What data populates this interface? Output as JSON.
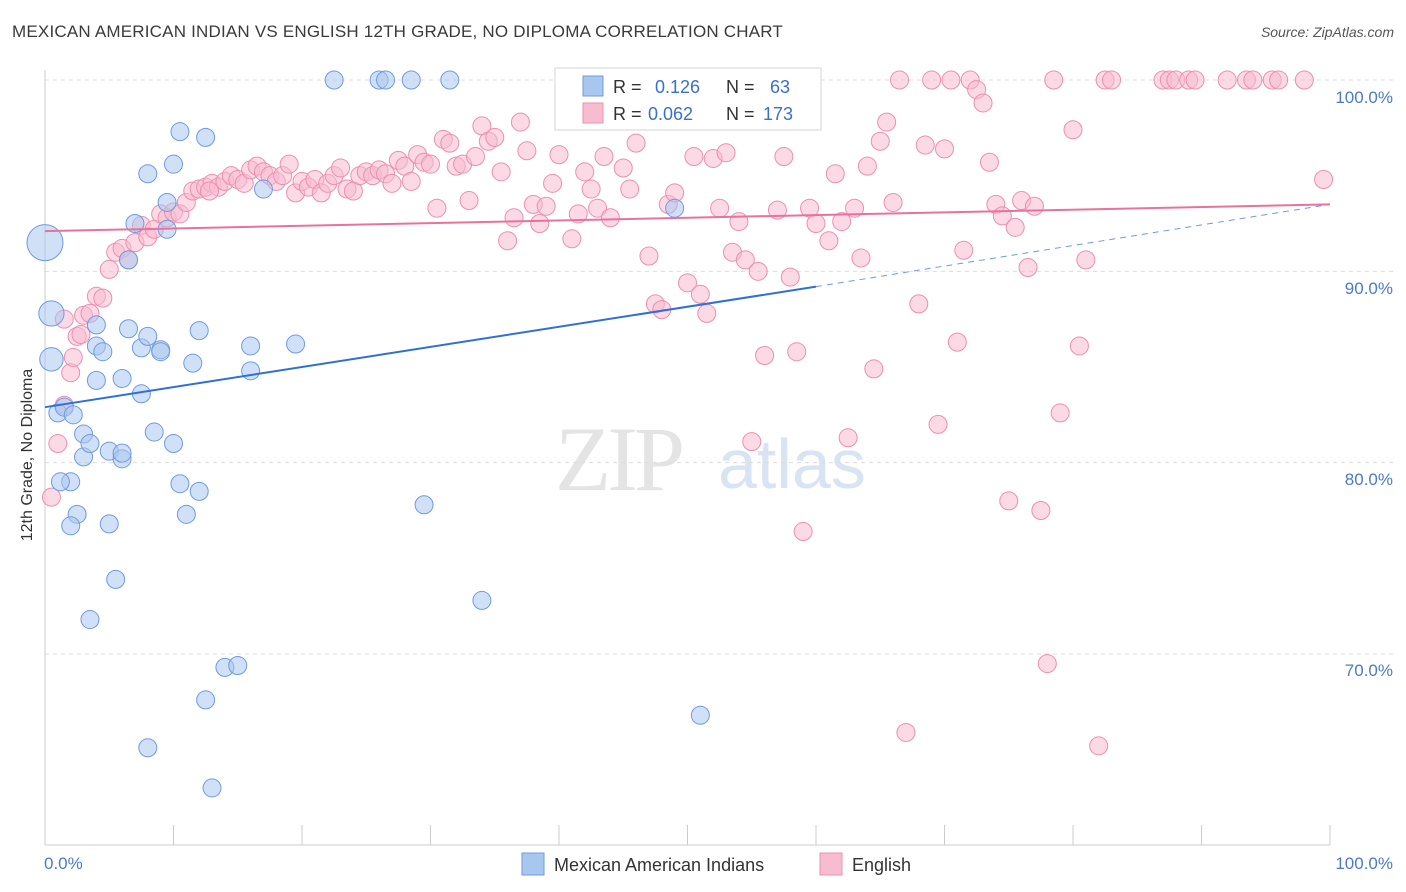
{
  "title": "MEXICAN AMERICAN INDIAN VS ENGLISH 12TH GRADE, NO DIPLOMA CORRELATION CHART",
  "source": "Source: ZipAtlas.com",
  "watermark": {
    "zip": "ZIP",
    "atlas": "atlas"
  },
  "colors": {
    "blue_fill": "#a9c6ef",
    "blue_stroke": "#6f9be0",
    "blue_line": "#2f6fd6",
    "pink_fill": "#f7bcd0",
    "pink_stroke": "#ec8fae",
    "pink_line": "#e8729c",
    "axis_text": "#4a7bc8",
    "grid": "#dcdcdc"
  },
  "stats_box": {
    "rows": [
      {
        "r_label": "R =",
        "r_value": "0.126",
        "n_label": "N =",
        "n_value": "63",
        "color": "blue"
      },
      {
        "r_label": "R =",
        "r_value": "0.062",
        "n_label": "N =",
        "n_value": "173",
        "color": "pink"
      }
    ]
  },
  "chart_data": {
    "type": "scatter",
    "xlabel": "",
    "ylabel": "12th Grade, No Diploma",
    "x_tick_labels": [
      "0.0%",
      "100.0%"
    ],
    "y_tick_labels": [
      "70.0%",
      "80.0%",
      "90.0%",
      "100.0%"
    ],
    "xlim": [
      0,
      100
    ],
    "ylim": [
      62,
      102
    ],
    "grid": true,
    "legend_position": "bottom-center",
    "series": [
      {
        "name": "Mexican American Indians",
        "color": "blue",
        "trend": {
          "x0": 0,
          "y0": 82.9,
          "x1": 60,
          "y1": 89.2,
          "dashed_to_x": 100,
          "dashed_to_y": 93.5
        },
        "points": [
          [
            0,
            91.5,
            2
          ],
          [
            0.5,
            87.8,
            1.4
          ],
          [
            0.5,
            85.4,
            1.3
          ],
          [
            1,
            82.6,
            1
          ],
          [
            1.5,
            82.9,
            1
          ],
          [
            2,
            79.0,
            1
          ],
          [
            2.5,
            77.3,
            1
          ],
          [
            2,
            76.7,
            1
          ],
          [
            3,
            80.3,
            1
          ],
          [
            3,
            81.5,
            1
          ],
          [
            3.5,
            81.0,
            1
          ],
          [
            4,
            86.1,
            1
          ],
          [
            4,
            84.3,
            1
          ],
          [
            4,
            87.2,
            1
          ],
          [
            4.5,
            85.8,
            1
          ],
          [
            3.5,
            71.8,
            1
          ],
          [
            5,
            76.8,
            1
          ],
          [
            5,
            80.6,
            1
          ],
          [
            5.5,
            73.9,
            1
          ],
          [
            6,
            80.2,
            1
          ],
          [
            6,
            80.5,
            1
          ],
          [
            6,
            84.4,
            1
          ],
          [
            6.5,
            87.0,
            1
          ],
          [
            6.5,
            90.6,
            1
          ],
          [
            7,
            92.5,
            1
          ],
          [
            7.5,
            86.0,
            1
          ],
          [
            7.5,
            83.6,
            1
          ],
          [
            8,
            65.1,
            1
          ],
          [
            8,
            95.1,
            1
          ],
          [
            8,
            86.6,
            1
          ],
          [
            8.5,
            81.6,
            1
          ],
          [
            9,
            85.9,
            1
          ],
          [
            9,
            85.8,
            1
          ],
          [
            9.5,
            93.6,
            1
          ],
          [
            9.5,
            92.2,
            1
          ],
          [
            10,
            95.6,
            1
          ],
          [
            10,
            81.0,
            1
          ],
          [
            10.5,
            78.9,
            1
          ],
          [
            10.5,
            97.3,
            1
          ],
          [
            11,
            77.3,
            1
          ],
          [
            11.5,
            85.2,
            1
          ],
          [
            12,
            86.9,
            1
          ],
          [
            12,
            78.5,
            1
          ],
          [
            12.5,
            67.6,
            1
          ],
          [
            12.5,
            97.0,
            1
          ],
          [
            13,
            63.0,
            1
          ],
          [
            14,
            69.3,
            1
          ],
          [
            15,
            69.4,
            1
          ],
          [
            16,
            84.8,
            1
          ],
          [
            16,
            86.1,
            1
          ],
          [
            17,
            94.3,
            1
          ],
          [
            19.5,
            86.2,
            1
          ],
          [
            22.5,
            100,
            1
          ],
          [
            26,
            100,
            1
          ],
          [
            26.5,
            100,
            1
          ],
          [
            28.5,
            100,
            1
          ],
          [
            29.5,
            77.8,
            1
          ],
          [
            31.5,
            100,
            1
          ],
          [
            34,
            72.8,
            1
          ],
          [
            49,
            93.3,
            1
          ],
          [
            51,
            66.8,
            1
          ],
          [
            1.2,
            79.0,
            1
          ],
          [
            2.2,
            82.5,
            1
          ]
        ]
      },
      {
        "name": "English",
        "color": "pink",
        "trend": {
          "x0": 0,
          "y0": 92.1,
          "x1": 100,
          "y1": 93.5
        },
        "points": [
          [
            0.5,
            78.2,
            1
          ],
          [
            1,
            81.0,
            1
          ],
          [
            1.5,
            83.0,
            1
          ],
          [
            2,
            84.7,
            1
          ],
          [
            2.2,
            85.5,
            1
          ],
          [
            2.5,
            86.6,
            1
          ],
          [
            3,
            87.7,
            1
          ],
          [
            3.5,
            87.8,
            1
          ],
          [
            4,
            88.7,
            1
          ],
          [
            4.5,
            88.6,
            1
          ],
          [
            5,
            90.1,
            1
          ],
          [
            5.5,
            91.0,
            1
          ],
          [
            6,
            91.2,
            1
          ],
          [
            6.5,
            90.6,
            1
          ],
          [
            7,
            91.5,
            1
          ],
          [
            7.5,
            92.4,
            1
          ],
          [
            8,
            91.8,
            1
          ],
          [
            8.5,
            92.2,
            1
          ],
          [
            9,
            93.0,
            1
          ],
          [
            9.5,
            92.8,
            1
          ],
          [
            10,
            93.1,
            1
          ],
          [
            10.5,
            93.0,
            1
          ],
          [
            11,
            93.6,
            1
          ],
          [
            11.5,
            94.2,
            1
          ],
          [
            12,
            94.3,
            1
          ],
          [
            12.5,
            94.4,
            1
          ],
          [
            13,
            94.6,
            1
          ],
          [
            13.5,
            94.4,
            1
          ],
          [
            14,
            94.7,
            1
          ],
          [
            14.5,
            95.0,
            1
          ],
          [
            15,
            94.8,
            1
          ],
          [
            15.5,
            94.6,
            1
          ],
          [
            16,
            95.3,
            1
          ],
          [
            16.5,
            95.5,
            1
          ],
          [
            17,
            95.2,
            1
          ],
          [
            17.5,
            95.0,
            1
          ],
          [
            18,
            94.7,
            1
          ],
          [
            18.5,
            95.0,
            1
          ],
          [
            19,
            95.6,
            1
          ],
          [
            19.5,
            94.1,
            1
          ],
          [
            20,
            94.7,
            1
          ],
          [
            20.5,
            94.4,
            1
          ],
          [
            21,
            94.8,
            1
          ],
          [
            21.5,
            94.1,
            1
          ],
          [
            22,
            94.6,
            1
          ],
          [
            22.5,
            95.0,
            1
          ],
          [
            23,
            95.4,
            1
          ],
          [
            23.5,
            94.3,
            1
          ],
          [
            24,
            94.2,
            1
          ],
          [
            24.5,
            95.0,
            1
          ],
          [
            25,
            95.2,
            1
          ],
          [
            25.5,
            95.0,
            1
          ],
          [
            26,
            95.3,
            1
          ],
          [
            26.5,
            95.1,
            1
          ],
          [
            27,
            94.6,
            1
          ],
          [
            27.5,
            95.8,
            1
          ],
          [
            28,
            95.5,
            1
          ],
          [
            28.5,
            94.7,
            1
          ],
          [
            29,
            96.1,
            1
          ],
          [
            29.5,
            95.7,
            1
          ],
          [
            30,
            95.6,
            1
          ],
          [
            30.5,
            93.3,
            1
          ],
          [
            31,
            96.9,
            1
          ],
          [
            31.5,
            96.7,
            1
          ],
          [
            32,
            95.5,
            1
          ],
          [
            32.5,
            95.6,
            1
          ],
          [
            33,
            93.7,
            1
          ],
          [
            33.5,
            96.0,
            1
          ],
          [
            34,
            97.6,
            1
          ],
          [
            34.5,
            96.8,
            1
          ],
          [
            35,
            97.0,
            1
          ],
          [
            35.5,
            95.2,
            1
          ],
          [
            36,
            91.6,
            1
          ],
          [
            36.5,
            92.8,
            1
          ],
          [
            37,
            97.8,
            1
          ],
          [
            37.5,
            96.3,
            1
          ],
          [
            38,
            93.5,
            1
          ],
          [
            38.5,
            92.5,
            1
          ],
          [
            39,
            93.4,
            1
          ],
          [
            39.5,
            94.6,
            1
          ],
          [
            40,
            96.1,
            1
          ],
          [
            41,
            91.7,
            1
          ],
          [
            41.5,
            93.0,
            1
          ],
          [
            42,
            95.2,
            1
          ],
          [
            42.5,
            94.3,
            1
          ],
          [
            43,
            93.3,
            1
          ],
          [
            43.5,
            96.0,
            1
          ],
          [
            44,
            92.8,
            1
          ],
          [
            45,
            95.4,
            1
          ],
          [
            45.5,
            94.3,
            1
          ],
          [
            46,
            96.7,
            1
          ],
          [
            47,
            90.8,
            1
          ],
          [
            47.5,
            88.3,
            1
          ],
          [
            48,
            88.0,
            1
          ],
          [
            48.5,
            93.5,
            1
          ],
          [
            49,
            94.1,
            1
          ],
          [
            50,
            89.4,
            1
          ],
          [
            50.5,
            96.0,
            1
          ],
          [
            51,
            88.8,
            1
          ],
          [
            51.5,
            87.8,
            1
          ],
          [
            52,
            95.9,
            1
          ],
          [
            52.5,
            93.3,
            1
          ],
          [
            53,
            96.2,
            1
          ],
          [
            53.5,
            91.0,
            1
          ],
          [
            54,
            92.6,
            1
          ],
          [
            54.5,
            90.6,
            1
          ],
          [
            55,
            81.1,
            1
          ],
          [
            55.5,
            90.0,
            1
          ],
          [
            56,
            85.6,
            1
          ],
          [
            57,
            93.2,
            1
          ],
          [
            57.5,
            96.0,
            1
          ],
          [
            58,
            89.7,
            1
          ],
          [
            58.5,
            85.8,
            1
          ],
          [
            59,
            76.4,
            1
          ],
          [
            59.5,
            93.3,
            1
          ],
          [
            60,
            92.5,
            1
          ],
          [
            61,
            91.6,
            1
          ],
          [
            61.5,
            95.1,
            1
          ],
          [
            62,
            92.6,
            1
          ],
          [
            62.5,
            81.3,
            1
          ],
          [
            63,
            93.3,
            1
          ],
          [
            63.5,
            90.7,
            1
          ],
          [
            64,
            95.5,
            1
          ],
          [
            64.5,
            84.9,
            1
          ],
          [
            65,
            96.8,
            1
          ],
          [
            65.5,
            97.8,
            1
          ],
          [
            66,
            93.6,
            1
          ],
          [
            66.5,
            100,
            1
          ],
          [
            67,
            65.9,
            1
          ],
          [
            68,
            88.3,
            1
          ],
          [
            68.5,
            96.6,
            1
          ],
          [
            69,
            100,
            1
          ],
          [
            69.5,
            82.0,
            1
          ],
          [
            70,
            96.4,
            1
          ],
          [
            70.5,
            100,
            1
          ],
          [
            71,
            86.3,
            1
          ],
          [
            71.5,
            91.1,
            1
          ],
          [
            72,
            100,
            1
          ],
          [
            72.5,
            99.5,
            1
          ],
          [
            73,
            98.8,
            1
          ],
          [
            73.5,
            95.7,
            1
          ],
          [
            74,
            93.5,
            1
          ],
          [
            74.5,
            92.9,
            1
          ],
          [
            75,
            78.0,
            1
          ],
          [
            75.5,
            92.3,
            1
          ],
          [
            76,
            93.7,
            1
          ],
          [
            76.5,
            90.2,
            1
          ],
          [
            77,
            93.4,
            1
          ],
          [
            77.5,
            77.5,
            1
          ],
          [
            78,
            69.5,
            1
          ],
          [
            78.5,
            100,
            1
          ],
          [
            79,
            82.6,
            1
          ],
          [
            80,
            97.4,
            1
          ],
          [
            80.5,
            86.1,
            1
          ],
          [
            81,
            90.6,
            1
          ],
          [
            82,
            65.2,
            1
          ],
          [
            82.5,
            100,
            1
          ],
          [
            83,
            100,
            1
          ],
          [
            87,
            100,
            1
          ],
          [
            87.5,
            100,
            1
          ],
          [
            88,
            100,
            1
          ],
          [
            89,
            100,
            1
          ],
          [
            89.5,
            100,
            1
          ],
          [
            92,
            100,
            1
          ],
          [
            93.5,
            100,
            1
          ],
          [
            94,
            100,
            1
          ],
          [
            95.5,
            100,
            1
          ],
          [
            96,
            100,
            1
          ],
          [
            98,
            100,
            1
          ],
          [
            99.5,
            94.8,
            1
          ],
          [
            1.5,
            87.5,
            1
          ],
          [
            2.8,
            86.7,
            1
          ],
          [
            12.8,
            94.2,
            1
          ]
        ]
      }
    ]
  }
}
